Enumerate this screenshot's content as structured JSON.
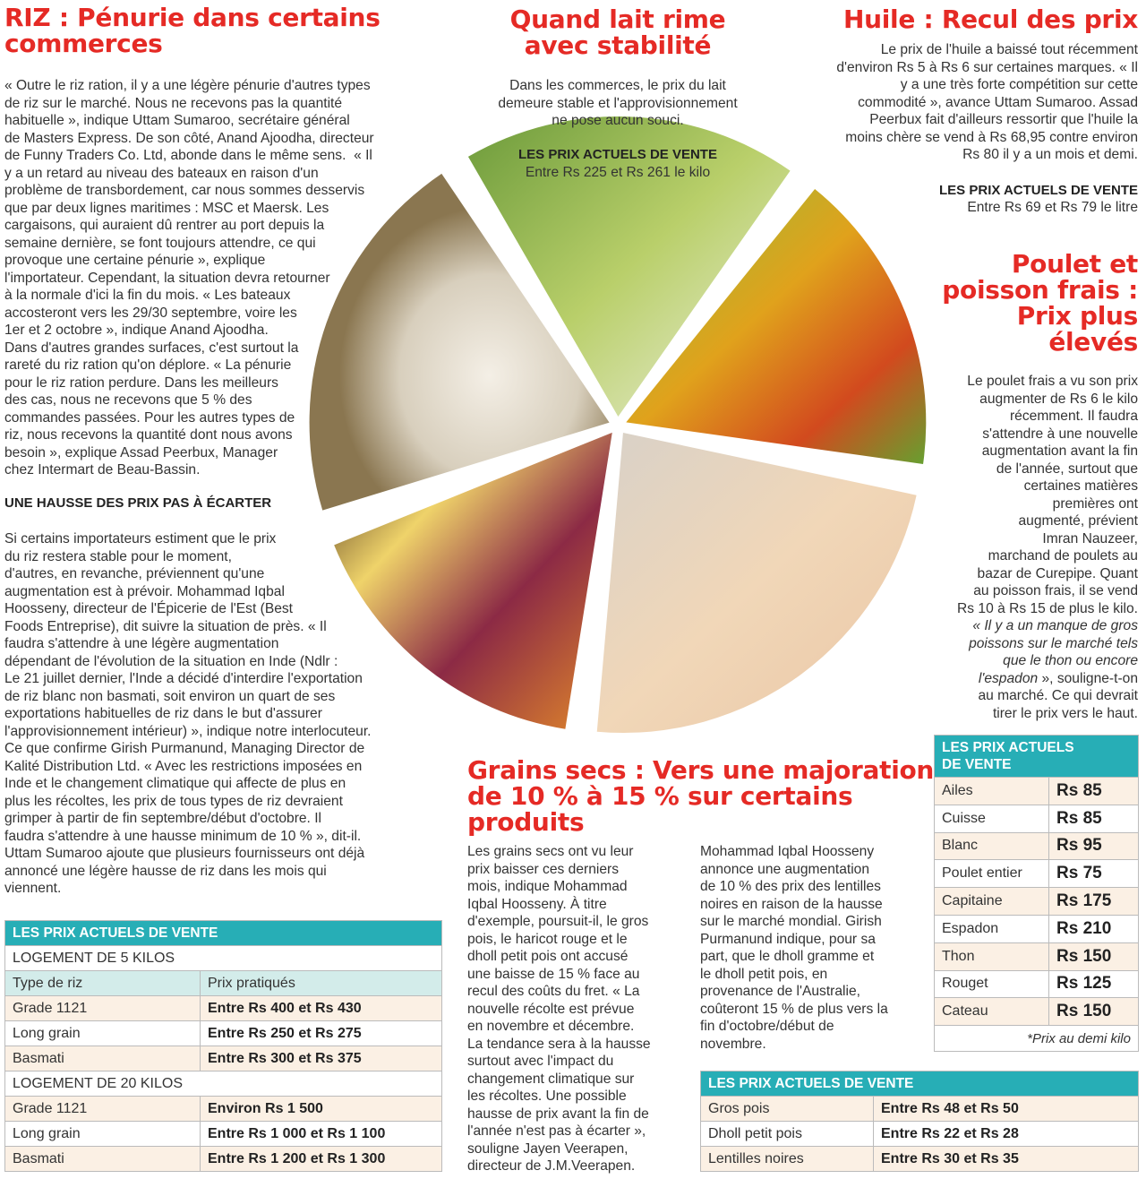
{
  "riz": {
    "headline": "RIZ : Pénurie dans certains\ncommerces",
    "para1": "« Outre le riz ration, il y a une légère pénurie d'autres types\nde riz sur le marché. Nous ne recevons pas la quantité\nhabituelle », indique Uttam Sumaroo, secrétaire général\nde Masters Express. De son côté, Anand Ajoodha, directeur\nde Funny Traders Co. Ltd, abonde dans le même sens.  « Il\ny a un retard au niveau des bateaux en raison d'un\nproblème de transbordement, car nous sommes desservis\nque par deux lignes maritimes : MSC et Maersk. Les\ncargaisons, qui auraient dû rentrer au port depuis la\nsemaine dernière, se font toujours attendre, ce qui\nprovoque une certaine pénurie », explique\nl'importateur. Cependant, la situation devra retourner\nà la normale d'ici la fin du mois. « Les bateaux\naccosteront vers les 29/30 septembre, voire les\n1er et 2 octobre », indique Anand Ajoodha.\nDans d'autres grandes surfaces, c'est surtout la\nrareté du riz ration qu'on déplore. « La pénurie\npour le riz ration perdure. Dans les meilleurs\ndes cas, nous ne recevons que 5 % des\ncommandes passées. Pour les autres types de\nriz, nous recevons la quantité dont nous avons\nbesoin », explique Assad Peerbux, Manager\nchez Intermart de Beau-Bassin.",
    "subhead": "UNE HAUSSE DES PRIX PAS À ÉCARTER",
    "para2": "Si certains importateurs estiment que le prix\ndu riz restera stable pour le moment,\nd'autres, en revanche, préviennent qu'une\naugmentation est à prévoir. Mohammad Iqbal\nHoosseny, directeur de l'Épicerie de l'Est (Best\nFoods Entreprise), dit suivre la situation de près. « Il\nfaudra s'attendre à une légère augmentation\ndépendant de l'évolution de la situation en Inde (Ndlr :\nLe 21 juillet dernier, l'Inde a décidé d'interdire l'exportation\nde riz blanc non basmati, soit environ un quart de ses\nexportations habituelles de riz dans le but d'assurer\nl'approvisionnement intérieur) », indique notre interlocuteur.\nCe que confirme Girish Purmanund, Managing Director de\nKalité Distribution Ltd. « Avec les restrictions imposées en\nInde et le changement climatique qui affecte de plus en\nplus les récoltes, les prix de tous types de riz devraient\ngrimper à partir de fin septembre/début d'octobre. Il\nfaudra s'attendre à une hausse minimum de 10 % », dit-il.\nUttam Sumaroo ajoute que plusieurs fournisseurs ont déjà\nannoncé une légère hausse de riz dans les mois qui\nviennent.",
    "table": {
      "title": "LES PRIX ACTUELS DE VENTE",
      "group1": "LOGEMENT DE 5 KILOS",
      "col1": "Type de riz",
      "col2": "Prix pratiqués",
      "rows1": [
        [
          "Grade 1121",
          "Entre Rs 400 et Rs 430"
        ],
        [
          "Long grain",
          "Entre Rs 250 et Rs 275"
        ],
        [
          "Basmati",
          "Entre Rs 300 et Rs 375"
        ]
      ],
      "group2": "LOGEMENT DE 20 KILOS",
      "rows2": [
        [
          "Grade 1121",
          "Environ Rs 1 500"
        ],
        [
          "Long grain",
          "Entre Rs 1 000 et Rs 1 100"
        ],
        [
          "Basmati",
          "Entre Rs 1 200 et Rs 1 300"
        ]
      ]
    }
  },
  "lait": {
    "headline": "Quand lait rime\navec stabilité",
    "text": "Dans les commerces, le prix du lait\ndemeure stable et l'approvisionnement\nne pose aucun souci.",
    "price_label": "LES PRIX ACTUELS DE VENTE",
    "price": "Entre Rs 225 et Rs 261 le kilo"
  },
  "huile": {
    "headline": "Huile : Recul des prix",
    "text": "Le prix de l'huile a baissé tout récemment\nd'environ Rs 5 à Rs 6 sur certaines marques. « Il\ny a une très forte compétition sur cette\ncommodité », avance Uttam Sumaroo. Assad\nPeerbux fait d'ailleurs ressortir que l'huile la\nmoins chère se vend à Rs 68,95 contre environ\nRs 80 il y a un mois et demi.",
    "price_label": "LES PRIX ACTUELS DE VENTE",
    "price": "Entre Rs 69 et Rs 79 le litre"
  },
  "poulet": {
    "headline": "Poulet et\npoisson frais :\nPrix plus\nélevés",
    "text": "Le poulet frais a vu son prix\naugmenter de Rs 6 le kilo\nrécemment. Il faudra\ns'attendre à une nouvelle\naugmentation avant la fin\nde l'année, surtout que\ncertaines matières\npremières ont\naugmenté, prévient\nImran Nauzeer,\nmarchand de poulets au\nbazar de Curepipe. Quant\nau poisson frais, il se vend\nRs 10 à Rs 15 de plus le kilo.",
    "quote": "« Il y a un manque de gros\npoissons sur le marché tels\nque le thon ou encore\nl'espadon",
    "text_end": " », souligne-t-on\nau marché. Ce qui devrait\ntirer le prix vers le haut.",
    "table": {
      "title": "LES PRIX ACTUELS\nDE VENTE",
      "rows": [
        [
          "Ailes",
          "Rs 85"
        ],
        [
          "Cuisse",
          "Rs 85"
        ],
        [
          "Blanc",
          "Rs 95"
        ],
        [
          "Poulet entier",
          "Rs 75"
        ],
        [
          "Capitaine",
          "Rs 175"
        ],
        [
          "Espadon",
          "Rs 210"
        ],
        [
          "Thon",
          "Rs 150"
        ],
        [
          "Rouget",
          "Rs 125"
        ],
        [
          "Cateau",
          "Rs 150"
        ]
      ],
      "note": "*Prix au demi kilo"
    }
  },
  "grains": {
    "headline": "Grains secs : Vers une majoration\nde 10 % à 15 % sur certains\nproduits",
    "col1": "Les grains secs ont vu leur\nprix baisser ces derniers\nmois, indique Mohammad\nIqbal Hoosseny. À titre\nd'exemple, poursuit-il, le gros\npois, le haricot rouge et le\ndholl petit pois ont accusé\nune baisse de 15 % face au\nrecul des coûts du fret. « La\nnouvelle récolte est prévue\nen novembre et décembre.\nLa tendance sera à la hausse\nsurtout avec l'impact du\nchangement climatique sur\nles récoltes. Une possible\nhausse de prix avant la fin de\nl'année n'est pas à écarter »,\nsouligne Jayen Veerapen,\ndirecteur de J.M.Veerapen.",
    "col2": "Mohammad Iqbal Hoosseny\nannonce une augmentation\nde 10 % des prix des lentilles\nnoires en raison de la hausse\nsur le marché mondial. Girish\nPurmanund indique, pour sa\npart, que le dholl gramme et\nle dholl petit pois, en\nprovenance de l'Australie,\ncoûteront 15 % de plus vers la\nfin d'octobre/début de\nnovembre.",
    "table": {
      "title": "LES PRIX ACTUELS DE VENTE",
      "rows": [
        [
          "Gros pois",
          "Entre Rs 48 et Rs 50"
        ],
        [
          "Dholl petit pois",
          "Entre Rs 22 et Rs 28"
        ],
        [
          "Lentilles noires",
          "Entre Rs 30 et Rs 35"
        ]
      ]
    }
  },
  "photo_wedges": [
    "rice-photo",
    "milk-photo",
    "oil-photo",
    "chicken-photo",
    "dry-beans-photo"
  ]
}
